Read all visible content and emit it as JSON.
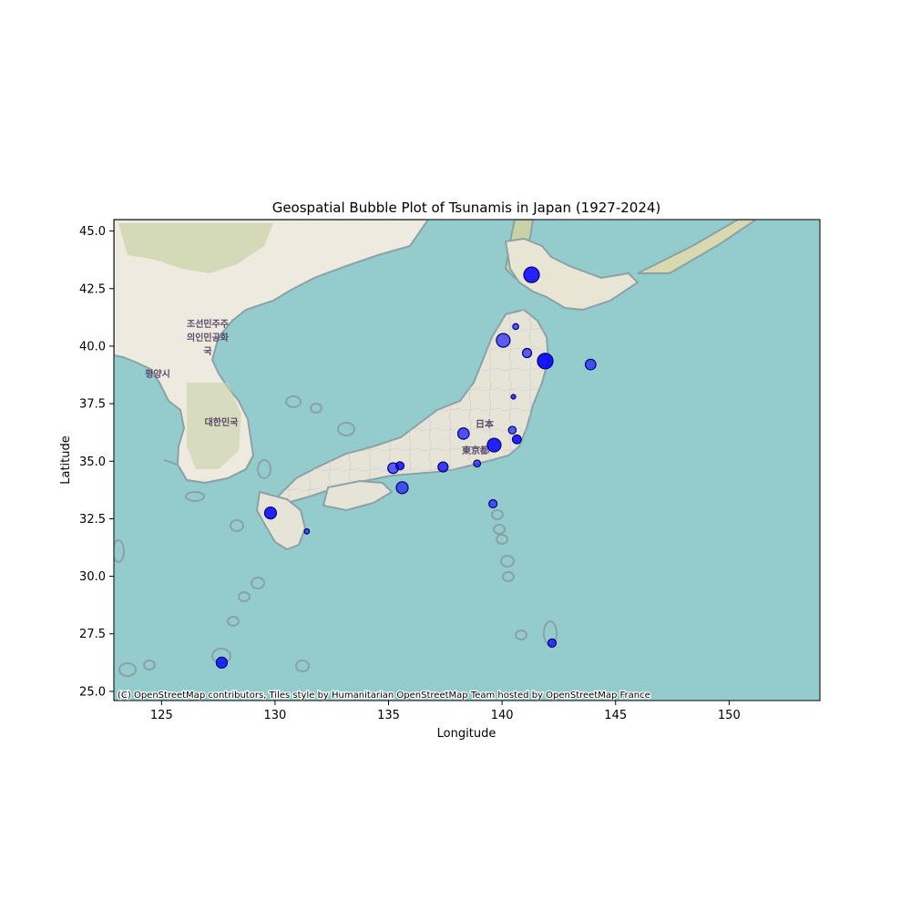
{
  "chart_data": {
    "type": "scatter",
    "title": "Geospatial Bubble Plot of Tsunamis in Japan (1927-2024)",
    "xlabel": "Longitude",
    "ylabel": "Latitude",
    "xlim": [
      122.9,
      154.0
    ],
    "ylim": [
      24.6,
      45.5
    ],
    "xticks": [
      125,
      130,
      135,
      140,
      145,
      150
    ],
    "yticks": [
      25.0,
      27.5,
      30.0,
      32.5,
      35.0,
      37.5,
      40.0,
      42.5,
      45.0
    ],
    "xtick_labels": [
      "125",
      "130",
      "135",
      "140",
      "145",
      "150"
    ],
    "ytick_labels": [
      "25.0",
      "27.5",
      "30.0",
      "32.5",
      "35.0",
      "37.5",
      "40.0",
      "42.5",
      "45.0"
    ],
    "grid": false,
    "legend": "none",
    "basemap_attribution": "(C) OpenStreetMap contributors, Tiles style by Humanitarian OpenStreetMap Team hosted by OpenStreetMap France",
    "basemap_labels": [
      "조선민주주",
      "의인민공화",
      "국",
      "평양시",
      "대한민국",
      "日本",
      "東京都"
    ],
    "colors": {
      "bubble_fill": "#0000ff",
      "bubble_edge": "#00007a",
      "sea": "#94cccd",
      "land": "#f2efe9"
    },
    "points": [
      {
        "lon": 141.3,
        "lat": 43.1,
        "size": 8.5,
        "alpha": 0.85
      },
      {
        "lon": 140.6,
        "lat": 40.85,
        "size": 3.2,
        "alpha": 0.6
      },
      {
        "lon": 140.05,
        "lat": 40.25,
        "size": 7.5,
        "alpha": 0.6
      },
      {
        "lon": 141.1,
        "lat": 39.7,
        "size": 5.0,
        "alpha": 0.6
      },
      {
        "lon": 141.9,
        "lat": 39.35,
        "size": 8.5,
        "alpha": 0.9
      },
      {
        "lon": 143.9,
        "lat": 39.2,
        "size": 5.8,
        "alpha": 0.6
      },
      {
        "lon": 140.5,
        "lat": 37.8,
        "size": 2.5,
        "alpha": 0.7
      },
      {
        "lon": 140.45,
        "lat": 36.35,
        "size": 4.2,
        "alpha": 0.6
      },
      {
        "lon": 138.3,
        "lat": 36.2,
        "size": 6.2,
        "alpha": 0.65
      },
      {
        "lon": 140.65,
        "lat": 35.95,
        "size": 4.8,
        "alpha": 0.85
      },
      {
        "lon": 139.65,
        "lat": 35.7,
        "size": 7.5,
        "alpha": 0.85
      },
      {
        "lon": 138.9,
        "lat": 34.9,
        "size": 3.8,
        "alpha": 0.6
      },
      {
        "lon": 135.5,
        "lat": 34.8,
        "size": 4.5,
        "alpha": 0.8
      },
      {
        "lon": 137.4,
        "lat": 34.75,
        "size": 5.5,
        "alpha": 0.75
      },
      {
        "lon": 135.2,
        "lat": 34.7,
        "size": 5.8,
        "alpha": 0.6
      },
      {
        "lon": 135.6,
        "lat": 33.85,
        "size": 6.5,
        "alpha": 0.6
      },
      {
        "lon": 139.6,
        "lat": 33.15,
        "size": 4.5,
        "alpha": 0.6
      },
      {
        "lon": 129.8,
        "lat": 32.75,
        "size": 6.5,
        "alpha": 0.85
      },
      {
        "lon": 131.4,
        "lat": 31.95,
        "size": 2.8,
        "alpha": 0.6
      },
      {
        "lon": 142.2,
        "lat": 27.1,
        "size": 4.5,
        "alpha": 0.7
      },
      {
        "lon": 127.65,
        "lat": 26.25,
        "size": 6.0,
        "alpha": 0.8
      }
    ]
  }
}
